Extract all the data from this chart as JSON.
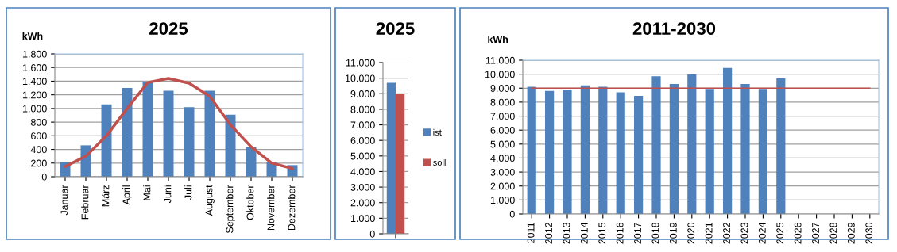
{
  "chart_data": [
    {
      "type": "bar",
      "title": "2025",
      "ylabel": "kWh",
      "categories": [
        "Januar",
        "Februar",
        "März",
        "April",
        "Mai",
        "Juni",
        "Juli",
        "August",
        "September",
        "Oktober",
        "November",
        "Dezember"
      ],
      "series": [
        {
          "color": "#4f81bd",
          "values": [
            210,
            460,
            1060,
            1300,
            1390,
            1260,
            1020,
            1260,
            910,
            430,
            220,
            170
          ]
        },
        {
          "type": "line",
          "color": "#c0504d",
          "values": [
            150,
            300,
            600,
            1000,
            1380,
            1440,
            1370,
            1180,
            760,
            440,
            200,
            120
          ]
        }
      ],
      "ylim": [
        0,
        1800
      ],
      "yticks": [
        0,
        {
          "value": 200,
          "label": "200"
        },
        {
          "value": 400,
          "label": "400"
        },
        {
          "value": 600,
          "label": "600"
        },
        {
          "value": 800,
          "label": "800"
        },
        {
          "value": 1000,
          "label": "1.000"
        },
        {
          "value": 1200,
          "label": "1.200"
        },
        {
          "value": 1400,
          "label": "1.400"
        },
        {
          "value": 1600,
          "label": "1.600"
        },
        {
          "value": 1800,
          "label": "1.800"
        }
      ],
      "grid": "y",
      "legend": false,
      "line_style": "solid"
    },
    {
      "type": "bar",
      "title": "2025",
      "categories": [
        null
      ],
      "series": [
        {
          "name": "ist",
          "color": "#4f81bd",
          "values": [
            9700
          ]
        },
        {
          "name": "soll",
          "color": "#c0504d",
          "values": [
            9000
          ]
        }
      ],
      "ylim": [
        0,
        11000
      ],
      "yticks": [
        0,
        {
          "value": 1000,
          "label": "1.000"
        },
        {
          "value": 2000,
          "label": "2.000"
        },
        {
          "value": 3000,
          "label": "3.000"
        },
        {
          "value": 4000,
          "label": "4.000"
        },
        {
          "value": 5000,
          "label": "5.000"
        },
        {
          "value": 6000,
          "label": "6.000"
        },
        {
          "value": 7000,
          "label": "7.000"
        },
        {
          "value": 8000,
          "label": "8.000"
        },
        {
          "value": 9000,
          "label": "9.000"
        },
        {
          "value": 10000,
          "label": "10.000"
        },
        {
          "value": 11000,
          "label": "11.000"
        }
      ],
      "grid": "y",
      "legend": "right"
    },
    {
      "type": "bar",
      "title": "2011-2030",
      "ylabel": "kWh",
      "categories": [
        "2011",
        "2012",
        "2013",
        "2014",
        "2015",
        "2016",
        "2017",
        "2018",
        "2019",
        "2020",
        "2021",
        "2022",
        "2023",
        "2024",
        "2025",
        "2026",
        "2027",
        "2028",
        "2029",
        "2030"
      ],
      "series": [
        {
          "color": "#4f81bd",
          "values": [
            9100,
            8800,
            8900,
            9200,
            9100,
            8700,
            8450,
            9850,
            9300,
            10000,
            8950,
            10450,
            9300,
            8950,
            9700,
            null,
            null,
            null,
            null,
            null
          ]
        },
        {
          "type": "line",
          "color": "#c0504d",
          "values": [
            9000,
            9000,
            9000,
            9000,
            9000,
            9000,
            9000,
            9000,
            9000,
            9000,
            9000,
            9000,
            9000,
            9000,
            9000,
            9000,
            9000,
            9000,
            9000,
            9000
          ]
        }
      ],
      "ylim": [
        0,
        11000
      ],
      "yticks": [
        0,
        {
          "value": 1000,
          "label": "1.000"
        },
        {
          "value": 2000,
          "label": "2.000"
        },
        {
          "value": 3000,
          "label": "3.000"
        },
        {
          "value": 4000,
          "label": "4.000"
        },
        {
          "value": 5000,
          "label": "5.000"
        },
        {
          "value": 6000,
          "label": "6.000"
        },
        {
          "value": 7000,
          "label": "7.000"
        },
        {
          "value": 8000,
          "label": "8.000"
        },
        {
          "value": 9000,
          "label": "9.000"
        },
        {
          "value": 10000,
          "label": "10.000"
        },
        {
          "value": 11000,
          "label": "11.000"
        }
      ],
      "grid": "y",
      "legend": false,
      "line_style": "solid"
    }
  ]
}
